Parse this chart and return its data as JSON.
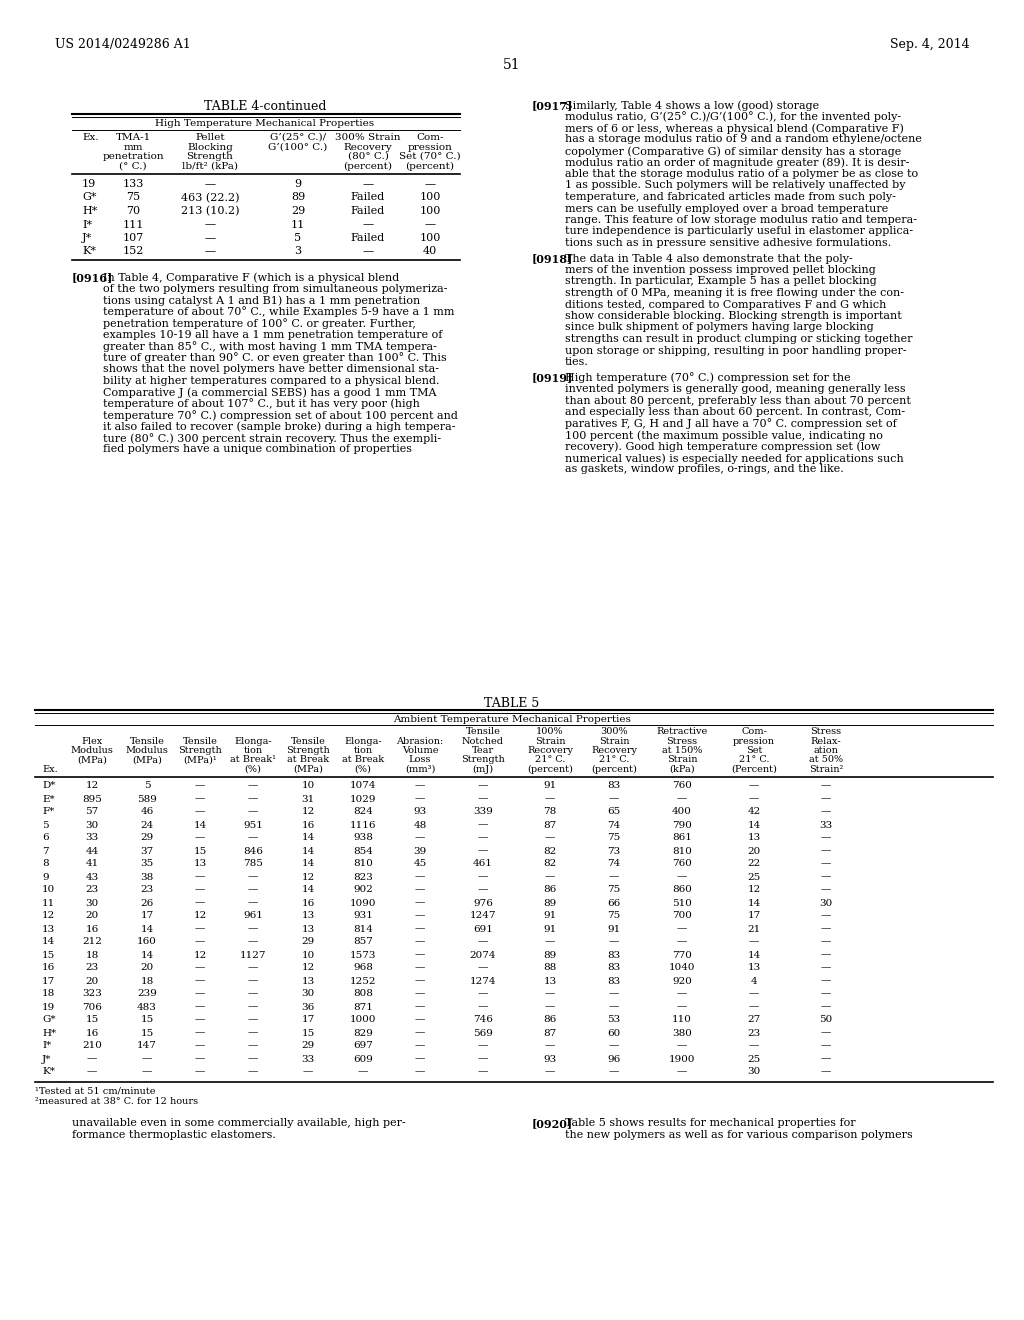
{
  "header_left": "US 2014/0249286 A1",
  "header_right": "Sep. 4, 2014",
  "page_num": "51",
  "table4_title": "TABLE 4-continued",
  "table4_subtitle": "High Temperature Mechanical Properties",
  "table4_rows": [
    [
      "19",
      "133",
      "—",
      "9",
      "—",
      "—"
    ],
    [
      "G*",
      "75",
      "463 (22.2)",
      "89",
      "Failed",
      "100"
    ],
    [
      "H*",
      "70",
      "213 (10.2)",
      "29",
      "Failed",
      "100"
    ],
    [
      "I*",
      "111",
      "—",
      "11",
      "—",
      "—"
    ],
    [
      "J*",
      "107",
      "—",
      "5",
      "Failed",
      "100"
    ],
    [
      "K*",
      "152",
      "—",
      "3",
      "—",
      "40"
    ]
  ],
  "p916_lines": [
    "In Table 4, Comparative F (which is a physical blend",
    "of the two polymers resulting from simultaneous polymeriza-",
    "tions using catalyst A 1 and B1) has a 1 mm penetration",
    "temperature of about 70° C., while Examples 5-9 have a 1 mm",
    "penetration temperature of 100° C. or greater. Further,",
    "examples 10-19 all have a 1 mm penetration temperature of",
    "greater than 85° C., with most having 1 mm TMA tempera-",
    "ture of greater than 90° C. or even greater than 100° C. This",
    "shows that the novel polymers have better dimensional sta-",
    "bility at higher temperatures compared to a physical blend.",
    "Comparative J (a commercial SEBS) has a good 1 mm TMA",
    "temperature of about 107° C., but it has very poor (high",
    "temperature 70° C.) compression set of about 100 percent and",
    "it also failed to recover (sample broke) during a high tempera-",
    "ture (80° C.) 300 percent strain recovery. Thus the exempli-",
    "fied polymers have a unique combination of properties"
  ],
  "p917_lines": [
    "Similarly, Table 4 shows a low (good) storage",
    "modulus ratio, G’(25° C.)/G’(100° C.), for the invented poly-",
    "mers of 6 or less, whereas a physical blend (Comparative F)",
    "has a storage modulus ratio of 9 and a random ethylene/octene",
    "copolymer (Comparative G) of similar density has a storage",
    "modulus ratio an order of magnitude greater (89). It is desir-",
    "able that the storage modulus ratio of a polymer be as close to",
    "1 as possible. Such polymers will be relatively unaffected by",
    "temperature, and fabricated articles made from such poly-",
    "mers can be usefully employed over a broad temperature",
    "range. This feature of low storage modulus ratio and tempera-",
    "ture independence is particularly useful in elastomer applica-",
    "tions such as in pressure sensitive adhesive formulations."
  ],
  "p918_lines": [
    "The data in Table 4 also demonstrate that the poly-",
    "mers of the invention possess improved pellet blocking",
    "strength. In particular, Example 5 has a pellet blocking",
    "strength of 0 MPa, meaning it is free flowing under the con-",
    "ditions tested, compared to Comparatives F and G which",
    "show considerable blocking. Blocking strength is important",
    "since bulk shipment of polymers having large blocking",
    "strengths can result in product clumping or sticking together",
    "upon storage or shipping, resulting in poor handling proper-",
    "ties."
  ],
  "p919_lines": [
    "High temperature (70° C.) compression set for the",
    "invented polymers is generally good, meaning generally less",
    "than about 80 percent, preferably less than about 70 percent",
    "and especially less than about 60 percent. In contrast, Com-",
    "paratives F, G, H and J all have a 70° C. compression set of",
    "100 percent (the maximum possible value, indicating no",
    "recovery). Good high temperature compression set (low",
    "numerical values) is especially needed for applications such",
    "as gaskets, window profiles, o-rings, and the like."
  ],
  "table5_title": "TABLE 5",
  "table5_subtitle": "Ambient Temperature Mechanical Properties",
  "table5_headers": [
    "Ex.",
    "Flex\nModulus\n(MPa)",
    "Tensile\nModulus\n(MPa)",
    "Tensile\nStrength\n(MPa)¹",
    "Elonga-\ntion\nat Break¹\n(%)",
    "Tensile\nStrength\nat Break\n(MPa)",
    "Elonga-\ntion\nat Break\n(%)",
    "Abrasion:\nVolume\nLoss\n(mm³)",
    "Tensile\nNotched\nTear\nStrength\n(mJ)",
    "100%\nStrain\nRecovery\n21° C.\n(percent)",
    "300%\nStrain\nRecovery\n21° C.\n(percent)",
    "Retractive\nStress\nat 150%\nStrain\n(kPa)",
    "Com-\npression\nSet\n21° C.\n(Percent)",
    "Stress\nRelax-\nation\nat 50%\nStrain²"
  ],
  "table5_rows": [
    [
      "D*",
      "12",
      "5",
      "—",
      "—",
      "10",
      "1074",
      "—",
      "—",
      "91",
      "83",
      "760",
      "—",
      "—"
    ],
    [
      "E*",
      "895",
      "589",
      "—",
      "—",
      "31",
      "1029",
      "—",
      "—",
      "—",
      "—",
      "—",
      "—",
      "—"
    ],
    [
      "F*",
      "57",
      "46",
      "—",
      "—",
      "12",
      "824",
      "93",
      "339",
      "78",
      "65",
      "400",
      "42",
      "—"
    ],
    [
      "5",
      "30",
      "24",
      "14",
      "951",
      "16",
      "1116",
      "48",
      "—",
      "87",
      "74",
      "790",
      "14",
      "33"
    ],
    [
      "6",
      "33",
      "29",
      "—",
      "—",
      "14",
      "938",
      "—",
      "—",
      "—",
      "75",
      "861",
      "13",
      "—"
    ],
    [
      "7",
      "44",
      "37",
      "15",
      "846",
      "14",
      "854",
      "39",
      "—",
      "82",
      "73",
      "810",
      "20",
      "—"
    ],
    [
      "8",
      "41",
      "35",
      "13",
      "785",
      "14",
      "810",
      "45",
      "461",
      "82",
      "74",
      "760",
      "22",
      "—"
    ],
    [
      "9",
      "43",
      "38",
      "—",
      "—",
      "12",
      "823",
      "—",
      "—",
      "—",
      "—",
      "—",
      "25",
      "—"
    ],
    [
      "10",
      "23",
      "23",
      "—",
      "—",
      "14",
      "902",
      "—",
      "—",
      "86",
      "75",
      "860",
      "12",
      "—"
    ],
    [
      "11",
      "30",
      "26",
      "—",
      "—",
      "16",
      "1090",
      "—",
      "976",
      "89",
      "66",
      "510",
      "14",
      "30"
    ],
    [
      "12",
      "20",
      "17",
      "12",
      "961",
      "13",
      "931",
      "—",
      "1247",
      "91",
      "75",
      "700",
      "17",
      "—"
    ],
    [
      "13",
      "16",
      "14",
      "—",
      "—",
      "13",
      "814",
      "—",
      "691",
      "91",
      "91",
      "—",
      "21",
      "—"
    ],
    [
      "14",
      "212",
      "160",
      "—",
      "—",
      "29",
      "857",
      "—",
      "—",
      "—",
      "—",
      "—",
      "—",
      "—"
    ],
    [
      "15",
      "18",
      "14",
      "12",
      "1127",
      "10",
      "1573",
      "—",
      "2074",
      "89",
      "83",
      "770",
      "14",
      "—"
    ],
    [
      "16",
      "23",
      "20",
      "—",
      "—",
      "12",
      "968",
      "—",
      "—",
      "88",
      "83",
      "1040",
      "13",
      "—"
    ],
    [
      "17",
      "20",
      "18",
      "—",
      "—",
      "13",
      "1252",
      "—",
      "1274",
      "13",
      "83",
      "920",
      "4",
      "—"
    ],
    [
      "18",
      "323",
      "239",
      "—",
      "—",
      "30",
      "808",
      "—",
      "—",
      "—",
      "—",
      "—",
      "—",
      "—"
    ],
    [
      "19",
      "706",
      "483",
      "—",
      "—",
      "36",
      "871",
      "—",
      "—",
      "—",
      "—",
      "—",
      "—",
      "—"
    ],
    [
      "G*",
      "15",
      "15",
      "—",
      "—",
      "17",
      "1000",
      "—",
      "746",
      "86",
      "53",
      "110",
      "27",
      "50"
    ],
    [
      "H*",
      "16",
      "15",
      "—",
      "—",
      "15",
      "829",
      "—",
      "569",
      "87",
      "60",
      "380",
      "23",
      "—"
    ],
    [
      "I*",
      "210",
      "147",
      "—",
      "—",
      "29",
      "697",
      "—",
      "—",
      "—",
      "—",
      "—",
      "—",
      "—"
    ],
    [
      "J*",
      "—",
      "—",
      "—",
      "—",
      "33",
      "609",
      "—",
      "—",
      "93",
      "96",
      "1900",
      "25",
      "—"
    ],
    [
      "K*",
      "—",
      "—",
      "—",
      "—",
      "—",
      "—",
      "—",
      "—",
      "—",
      "—",
      "—",
      "30",
      "—"
    ]
  ],
  "table5_footnote1": "¹Tested at 51 cm/minute",
  "table5_footnote2": "²measured at 38° C. for 12 hours",
  "bot_left_lines": [
    "unavailable even in some commercially available, high per-",
    "formance thermoplastic elastomers."
  ],
  "p920_right_lines": [
    "Table 5 shows results for mechanical properties for",
    "the new polymers as well as for various comparison polymers"
  ]
}
